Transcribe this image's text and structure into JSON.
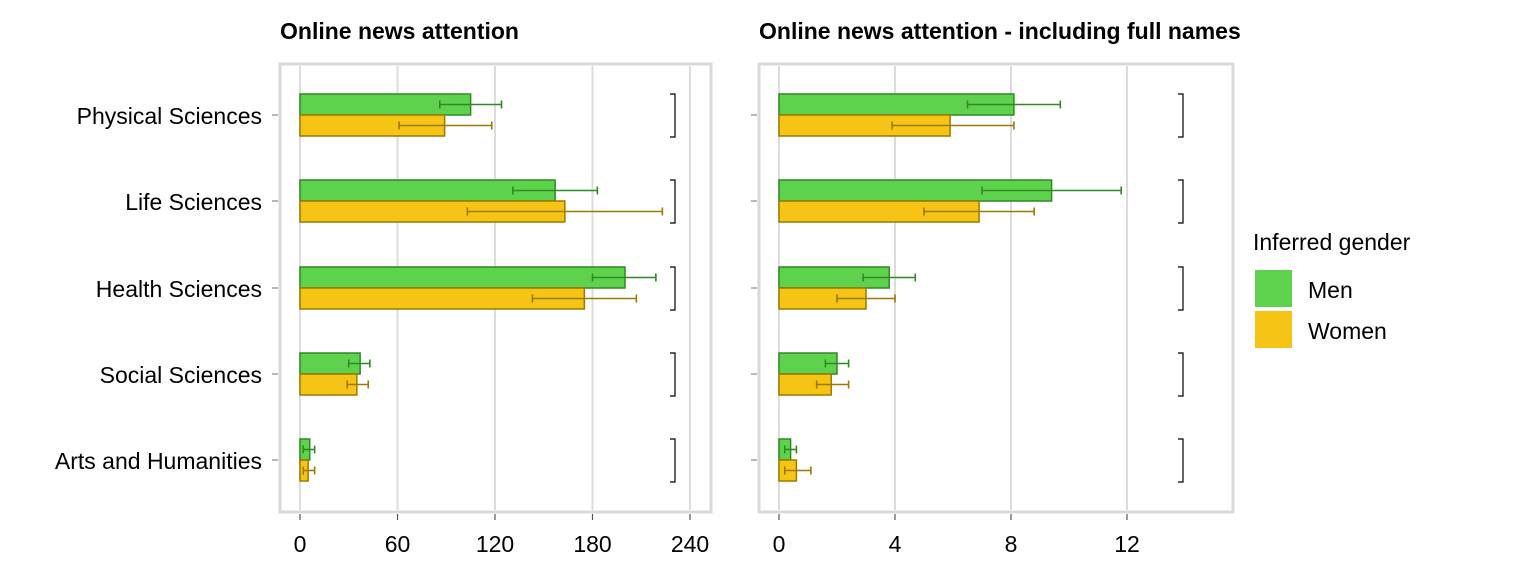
{
  "chart_data": {
    "type": "bar",
    "orientation": "horizontal",
    "categories": [
      "Physical Sciences",
      "Life Sciences",
      "Health Sciences",
      "Social Sciences",
      "Arts and Humanities"
    ],
    "legend": {
      "title": "Inferred gender",
      "position": "right",
      "entries": [
        {
          "name": "Men",
          "color": "#5fd24d",
          "stroke": "#2f8a22"
        },
        {
          "name": "Women",
          "color": "#f5c414",
          "stroke": "#9c7a00"
        }
      ]
    },
    "grid": true,
    "panels": [
      {
        "title": "Online news attention",
        "xlim": [
          0,
          240
        ],
        "xticks": [
          0,
          60,
          120,
          180,
          240
        ],
        "xtick_labels": [
          "0",
          "60",
          "120",
          "180",
          "240"
        ],
        "series": [
          {
            "name": "Men",
            "values": [
              105,
              157,
              200,
              37,
              6
            ],
            "err_low": [
              86,
              131,
              180,
              30,
              2
            ],
            "err_high": [
              124,
              183,
              219,
              43,
              9
            ]
          },
          {
            "name": "Women",
            "values": [
              89,
              163,
              175,
              35,
              5
            ],
            "err_low": [
              61,
              103,
              143,
              29,
              2
            ],
            "err_high": [
              118,
              223,
              207,
              42,
              9
            ]
          }
        ]
      },
      {
        "title": "Online news attention - including full names",
        "xlim": [
          0,
          14
        ],
        "xticks": [
          0,
          4,
          8,
          12
        ],
        "xtick_labels": [
          "0",
          "4",
          "8",
          "12"
        ],
        "series": [
          {
            "name": "Men",
            "values": [
              8.1,
              9.4,
              3.8,
              2.0,
              0.4
            ],
            "err_low": [
              6.5,
              7.0,
              2.9,
              1.6,
              0.2
            ],
            "err_high": [
              9.7,
              11.8,
              4.7,
              2.4,
              0.6
            ]
          },
          {
            "name": "Women",
            "values": [
              5.9,
              6.9,
              3.0,
              1.8,
              0.6
            ],
            "err_low": [
              3.9,
              5.0,
              2.0,
              1.3,
              0.2
            ],
            "err_high": [
              8.1,
              8.8,
              4.0,
              2.4,
              1.1
            ]
          }
        ]
      }
    ]
  }
}
